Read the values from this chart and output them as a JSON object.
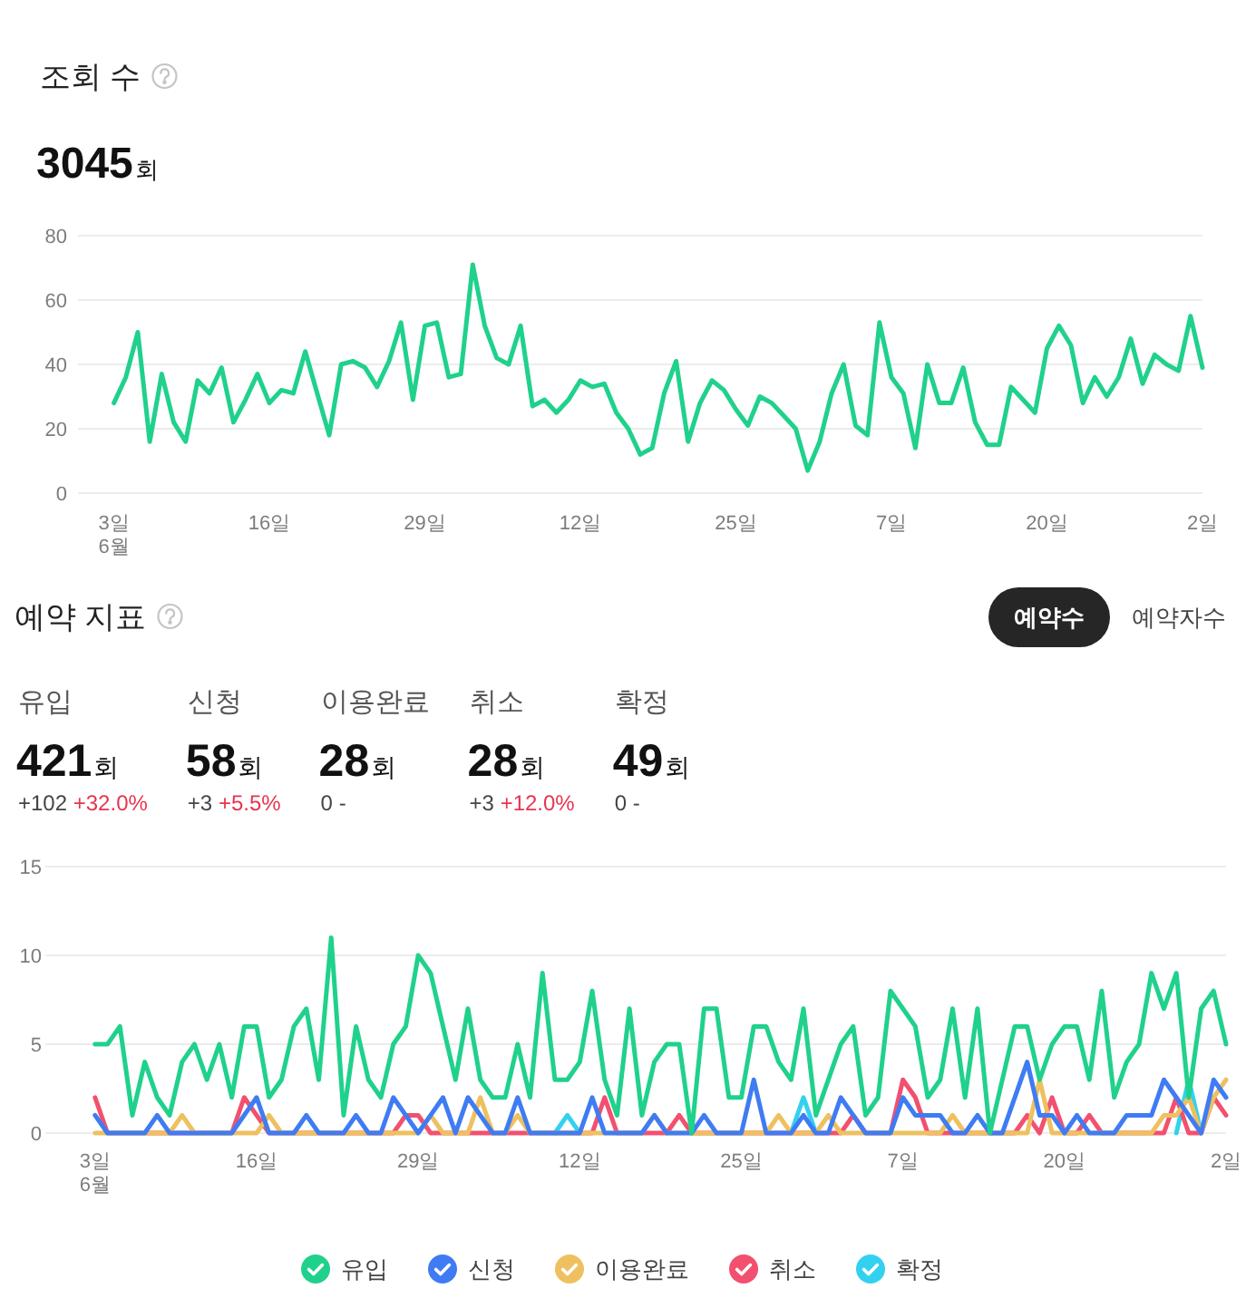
{
  "chart_data": [
    {
      "type": "line",
      "title": "조회 수",
      "subtitle": "3045회",
      "color": "#20d18c",
      "x": [
        "--06-03",
        "--06-04",
        "--06-05",
        "--06-06",
        "--06-07",
        "--06-08",
        "--06-09",
        "--06-10",
        "--06-11",
        "--06-12",
        "--06-13",
        "--06-14",
        "--06-15",
        "--06-16",
        "--06-17",
        "--06-18",
        "--06-19",
        "--06-20",
        "--06-21",
        "--06-22",
        "--06-23",
        "--06-24",
        "--06-25",
        "--06-26",
        "--06-27",
        "--06-28",
        "--06-29",
        "--06-30",
        "--07-01",
        "--07-02",
        "--07-03",
        "--07-04",
        "--07-05",
        "--07-06",
        "--07-07",
        "--07-08",
        "--07-09",
        "--07-10",
        "--07-11",
        "--07-12",
        "--07-13",
        "--07-14",
        "--07-15",
        "--07-16",
        "--07-17",
        "--07-18",
        "--07-19",
        "--07-20",
        "--07-21",
        "--07-22",
        "--07-23",
        "--07-24",
        "--07-25",
        "--07-26",
        "--07-27",
        "--07-28",
        "--07-29",
        "--07-30",
        "--07-31",
        "--08-01",
        "--08-02",
        "--08-03",
        "--08-04",
        "--08-05",
        "--08-06",
        "--08-07",
        "--08-08",
        "--08-09",
        "--08-10",
        "--08-11",
        "--08-12",
        "--08-13",
        "--08-14",
        "--08-15",
        "--08-16",
        "--08-17",
        "--08-18",
        "--08-19",
        "--08-20",
        "--08-21",
        "--08-22",
        "--08-23",
        "--08-24",
        "--08-25",
        "--08-26",
        "--08-27",
        "--08-28",
        "--08-29",
        "--08-30",
        "--08-31",
        "--09-01",
        "--09-02"
      ],
      "values": [
        28,
        36,
        50,
        16,
        37,
        22,
        16,
        35,
        31,
        39,
        22,
        29,
        37,
        28,
        32,
        31,
        44,
        31,
        18,
        40,
        41,
        39,
        33,
        41,
        53,
        29,
        52,
        53,
        36,
        37,
        71,
        52,
        42,
        40,
        52,
        27,
        29,
        25,
        29,
        35,
        33,
        34,
        25,
        20,
        12,
        14,
        31,
        41,
        16,
        28,
        35,
        32,
        26,
        21,
        30,
        28,
        24,
        20,
        7,
        16,
        31,
        40,
        21,
        18,
        53,
        36,
        31,
        14,
        40,
        28,
        28,
        39,
        22,
        15,
        15,
        33,
        29,
        25,
        45,
        52,
        46,
        28,
        36,
        30,
        36,
        48,
        34,
        43,
        40,
        38,
        55,
        39
      ],
      "xlim": [
        "--05-31",
        "--09-02"
      ],
      "xticks": [
        {
          "value": "--06-03",
          "label": "3일\n6월"
        },
        {
          "value": "--06-16",
          "label": "16일"
        },
        {
          "value": "--06-29",
          "label": "29일"
        },
        {
          "value": "--07-12",
          "label": "12일"
        },
        {
          "value": "--07-25",
          "label": "25일"
        },
        {
          "value": "--08-07",
          "label": "7일"
        },
        {
          "value": "--08-20",
          "label": "20일"
        },
        {
          "value": "--09-02",
          "label": "2일"
        }
      ],
      "ylim": [
        0,
        80
      ],
      "yticks": [
        0,
        20,
        40,
        60,
        80
      ],
      "grid": "y"
    },
    {
      "type": "other",
      "title": "예약 지표",
      "annotations": [
        "예약수",
        "예약자수",
        "유입",
        "421회",
        "+102 +32.0%",
        "신청",
        "58회",
        "+3 +5.5%",
        "이용완료",
        "28회",
        "0 -",
        "취소",
        "28회",
        "+3 +12.0%",
        "확정",
        "49회",
        "0 -"
      ]
    },
    {
      "type": "line",
      "x": [
        "--06-03",
        "--06-04",
        "--06-05",
        "--06-06",
        "--06-07",
        "--06-08",
        "--06-09",
        "--06-10",
        "--06-11",
        "--06-12",
        "--06-13",
        "--06-14",
        "--06-15",
        "--06-16",
        "--06-17",
        "--06-18",
        "--06-19",
        "--06-20",
        "--06-21",
        "--06-22",
        "--06-23",
        "--06-24",
        "--06-25",
        "--06-26",
        "--06-27",
        "--06-28",
        "--06-29",
        "--06-30",
        "--07-01",
        "--07-02",
        "--07-03",
        "--07-04",
        "--07-05",
        "--07-06",
        "--07-07",
        "--07-08",
        "--07-09",
        "--07-10",
        "--07-11",
        "--07-12",
        "--07-13",
        "--07-14",
        "--07-15",
        "--07-16",
        "--07-17",
        "--07-18",
        "--07-19",
        "--07-20",
        "--07-21",
        "--07-22",
        "--07-23",
        "--07-24",
        "--07-25",
        "--07-26",
        "--07-27",
        "--07-28",
        "--07-29",
        "--07-30",
        "--07-31",
        "--08-01",
        "--08-02",
        "--08-03",
        "--08-04",
        "--08-05",
        "--08-06",
        "--08-07",
        "--08-08",
        "--08-09",
        "--08-10",
        "--08-11",
        "--08-12",
        "--08-13",
        "--08-14",
        "--08-15",
        "--08-16",
        "--08-17",
        "--08-18",
        "--08-19",
        "--08-20",
        "--08-21",
        "--08-22",
        "--08-23",
        "--08-24",
        "--08-25",
        "--08-26",
        "--08-27",
        "--08-28",
        "--08-29",
        "--08-30",
        "--08-31",
        "--09-01",
        "--09-02"
      ],
      "series": [
        {
          "name": "유입",
          "color": "#20d18c",
          "values": [
            5,
            5,
            6,
            1,
            4,
            2,
            1,
            4,
            5,
            3,
            5,
            2,
            6,
            6,
            2,
            3,
            6,
            7,
            3,
            11,
            1,
            6,
            3,
            2,
            5,
            6,
            10,
            9,
            6,
            3,
            7,
            3,
            2,
            2,
            5,
            2,
            9,
            3,
            3,
            4,
            8,
            3,
            1,
            7,
            1,
            4,
            5,
            5,
            0,
            7,
            7,
            2,
            2,
            6,
            6,
            4,
            3,
            7,
            1,
            3,
            5,
            6,
            1,
            2,
            8,
            7,
            6,
            2,
            3,
            7,
            2,
            7,
            0,
            3,
            6,
            6,
            3,
            5,
            6,
            6,
            3,
            8,
            2,
            4,
            5,
            9,
            7,
            9,
            2,
            7,
            8,
            5
          ]
        },
        {
          "name": "신청",
          "color": "#3f7cf3",
          "values": [
            1,
            0,
            0,
            0,
            0,
            1,
            0,
            0,
            0,
            0,
            0,
            0,
            1,
            2,
            0,
            0,
            0,
            1,
            0,
            0,
            0,
            1,
            0,
            0,
            2,
            1,
            0,
            1,
            2,
            0,
            2,
            1,
            0,
            0,
            2,
            0,
            0,
            0,
            0,
            0,
            2,
            0,
            0,
            0,
            0,
            1,
            0,
            0,
            0,
            1,
            0,
            0,
            0,
            3,
            0,
            0,
            0,
            1,
            0,
            0,
            2,
            1,
            0,
            0,
            0,
            2,
            1,
            1,
            1,
            0,
            0,
            1,
            0,
            0,
            2,
            4,
            1,
            1,
            0,
            1,
            0,
            0,
            0,
            1,
            1,
            1,
            3,
            2,
            1,
            0,
            3,
            2
          ]
        },
        {
          "name": "이용완료",
          "color": "#eec060",
          "values": [
            0,
            0,
            0,
            0,
            0,
            0,
            0,
            1,
            0,
            0,
            0,
            0,
            0,
            0,
            1,
            0,
            0,
            0,
            0,
            0,
            0,
            0,
            0,
            0,
            0,
            0,
            0,
            1,
            0,
            0,
            0,
            2,
            0,
            0,
            1,
            0,
            0,
            0,
            0,
            0,
            0,
            0,
            0,
            0,
            0,
            1,
            0,
            0,
            0,
            0,
            0,
            0,
            0,
            0,
            0,
            1,
            0,
            0,
            0,
            1,
            0,
            0,
            0,
            0,
            0,
            0,
            0,
            0,
            0,
            1,
            0,
            0,
            0,
            0,
            0,
            0,
            3,
            0,
            0,
            0,
            0,
            0,
            0,
            0,
            0,
            0,
            1,
            1,
            2,
            0,
            2,
            3
          ]
        },
        {
          "name": "취소",
          "color": "#f2506e",
          "values": [
            2,
            0,
            0,
            0,
            0,
            0,
            0,
            0,
            0,
            0,
            0,
            0,
            2,
            1,
            0,
            0,
            0,
            0,
            0,
            0,
            0,
            0,
            0,
            0,
            0,
            1,
            1,
            0,
            0,
            0,
            0,
            0,
            0,
            0,
            0,
            0,
            0,
            0,
            0,
            0,
            0,
            2,
            0,
            0,
            0,
            0,
            0,
            1,
            0,
            0,
            0,
            0,
            0,
            0,
            0,
            0,
            0,
            0,
            0,
            0,
            0,
            1,
            0,
            0,
            0,
            3,
            2,
            0,
            0,
            0,
            0,
            0,
            0,
            0,
            0,
            1,
            0,
            2,
            0,
            0,
            1,
            0,
            0,
            0,
            0,
            0,
            0,
            2,
            0,
            0,
            2,
            1
          ]
        },
        {
          "name": "확정",
          "color": "#33d1f0",
          "values": [
            null,
            null,
            null,
            null,
            null,
            null,
            null,
            null,
            null,
            null,
            null,
            null,
            null,
            null,
            null,
            null,
            null,
            null,
            null,
            null,
            null,
            null,
            null,
            null,
            null,
            null,
            null,
            null,
            null,
            null,
            null,
            null,
            null,
            null,
            null,
            null,
            null,
            0,
            1,
            0,
            null,
            null,
            null,
            null,
            null,
            null,
            null,
            null,
            null,
            null,
            null,
            null,
            null,
            null,
            null,
            null,
            0,
            2,
            0,
            null,
            null,
            null,
            null,
            null,
            null,
            null,
            null,
            null,
            null,
            null,
            null,
            null,
            null,
            null,
            null,
            null,
            null,
            null,
            null,
            null,
            null,
            null,
            null,
            null,
            null,
            null,
            null,
            0,
            3,
            0,
            null,
            null
          ]
        }
      ],
      "xlim": [
        "--05-30",
        "--09-02"
      ],
      "xticks": [
        {
          "value": "--06-03",
          "label": "3일\n6월"
        },
        {
          "value": "--06-16",
          "label": "16일"
        },
        {
          "value": "--06-29",
          "label": "29일"
        },
        {
          "value": "--07-12",
          "label": "12일"
        },
        {
          "value": "--07-25",
          "label": "25일"
        },
        {
          "value": "--08-07",
          "label": "7일"
        },
        {
          "value": "--08-20",
          "label": "20일"
        },
        {
          "value": "--09-02",
          "label": "2일"
        }
      ],
      "ylim": [
        0,
        15
      ],
      "yticks": [
        0,
        5,
        10,
        15
      ],
      "grid": "y",
      "legend": "bottom"
    }
  ]
}
